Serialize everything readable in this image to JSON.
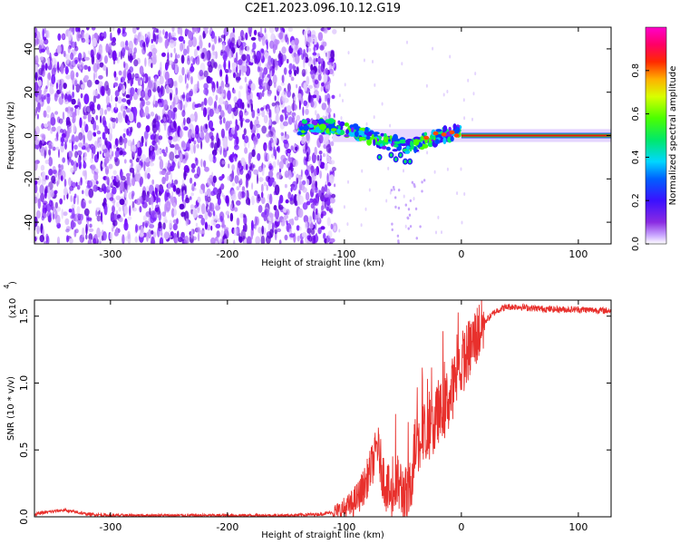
{
  "figure": {
    "title": "C2E1.2023.096.10.12.G19"
  },
  "chart_data": [
    {
      "type": "heatmap",
      "xlabel": "Height of straight line (km)",
      "ylabel": "Frequency (Hz)",
      "xlim": [
        -365,
        128
      ],
      "ylim": [
        -50,
        50
      ],
      "xticks": [
        -300,
        -200,
        -100,
        0,
        100
      ],
      "yticks": [
        -40,
        -20,
        0,
        20,
        40
      ],
      "colorbar": {
        "label": "Normalized spectral amplitude",
        "range": [
          0.0,
          1.0
        ],
        "ticks": [
          0.0,
          0.2,
          0.4,
          0.6,
          0.8
        ],
        "colormap": "rainbow: white-violet-purple-blue-cyan-green-yellow-orange-red-magenta"
      },
      "features": {
        "noise_region_x": [
          -365,
          -108
        ],
        "signal_line_freq_hz": 0,
        "signal_onset_x": -140,
        "scattered_region_x": [
          -110,
          0
        ],
        "dip_min_freq_hz": -12,
        "dip_min_x": -44,
        "strong_line_x": [
          0,
          128
        ]
      },
      "colors": {
        "noise": "#7a1bff",
        "line_core": "#e81010",
        "line_edge": "#3ad23a"
      }
    },
    {
      "type": "line",
      "xlabel": "Height of straight line (km)",
      "ylabel": "SNR (10 * v/v)",
      "yscale_label": "(x10",
      "yscale_exp": "4",
      "xlim": [
        -365,
        128
      ],
      "ylim": [
        0,
        1.62
      ],
      "xticks": [
        -300,
        -200,
        -100,
        0,
        100
      ],
      "yticks": [
        0.0,
        0.5,
        1.0,
        1.5
      ],
      "ytick_labels": [
        "0.0",
        "0.5",
        "1.0",
        "1.5"
      ],
      "series": [
        {
          "color": "#e8302c",
          "x": [
            -365,
            -350,
            -340,
            -320,
            -300,
            -250,
            -200,
            -150,
            -120,
            -105,
            -95,
            -88,
            -82,
            -78,
            -74,
            -72,
            -70,
            -68,
            -66,
            -64,
            -62,
            -60,
            -57,
            -54,
            -50,
            -46,
            -44,
            -42,
            -40,
            -38,
            -36,
            -34,
            -32,
            -30,
            -28,
            -26,
            -24,
            -22,
            -20,
            -18,
            -16,
            -14,
            -12,
            -10,
            -8,
            -6,
            -4,
            -2,
            0,
            4,
            8,
            12,
            16,
            20,
            25,
            30,
            35,
            40,
            50,
            60,
            80,
            100,
            128
          ],
          "y": [
            0.02,
            0.04,
            0.05,
            0.02,
            0.01,
            0.01,
            0.01,
            0.01,
            0.02,
            0.04,
            0.08,
            0.15,
            0.25,
            0.35,
            0.45,
            0.55,
            0.45,
            0.35,
            0.28,
            0.22,
            0.18,
            0.15,
            0.2,
            0.25,
            0.18,
            0.12,
            0.2,
            0.35,
            0.5,
            0.6,
            0.55,
            0.7,
            0.65,
            0.55,
            0.6,
            0.75,
            0.65,
            0.7,
            0.8,
            0.75,
            0.85,
            0.8,
            0.9,
            0.85,
            0.95,
            1.0,
            1.05,
            1.1,
            1.15,
            1.2,
            1.27,
            1.34,
            1.4,
            1.46,
            1.5,
            1.54,
            1.56,
            1.57,
            1.57,
            1.56,
            1.55,
            1.55,
            1.54
          ]
        }
      ]
    }
  ]
}
